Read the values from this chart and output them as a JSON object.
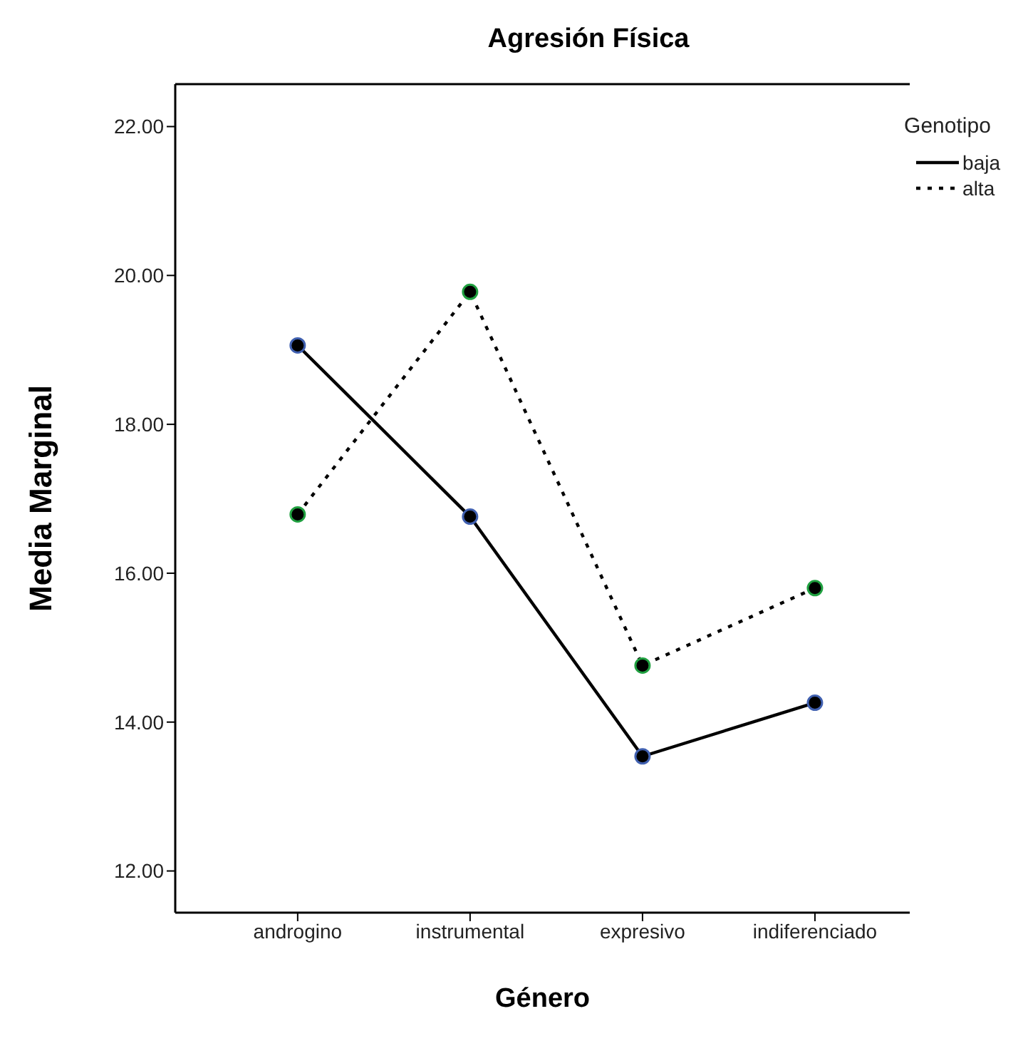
{
  "chart_data": {
    "type": "line",
    "title": "Agresión Física",
    "xlabel": "Género",
    "ylabel": "Media Marginal",
    "legend_title": "Genotipo",
    "categories": [
      "androgino",
      "instrumental",
      "expresivo",
      "indiferenciado"
    ],
    "series": [
      {
        "name": "baja",
        "color": "#000000",
        "values": [
          19.06,
          16.76,
          13.54,
          14.26
        ],
        "line_style": "solid"
      },
      {
        "name": "alta",
        "color": "#000000",
        "values": [
          16.79,
          19.78,
          14.76,
          15.8
        ],
        "line_style": "dotted"
      }
    ],
    "ylim": [
      11.44,
      22.57
    ],
    "yticks": [
      {
        "value": 12,
        "label": "12.00"
      },
      {
        "value": 14,
        "label": "14.00"
      },
      {
        "value": 16,
        "label": "16.00"
      },
      {
        "value": 18,
        "label": "18.00"
      },
      {
        "value": 20,
        "label": "20.00"
      },
      {
        "value": 22,
        "label": "22.00"
      }
    ],
    "marker": "circle",
    "grid": false,
    "legend": "top right"
  }
}
